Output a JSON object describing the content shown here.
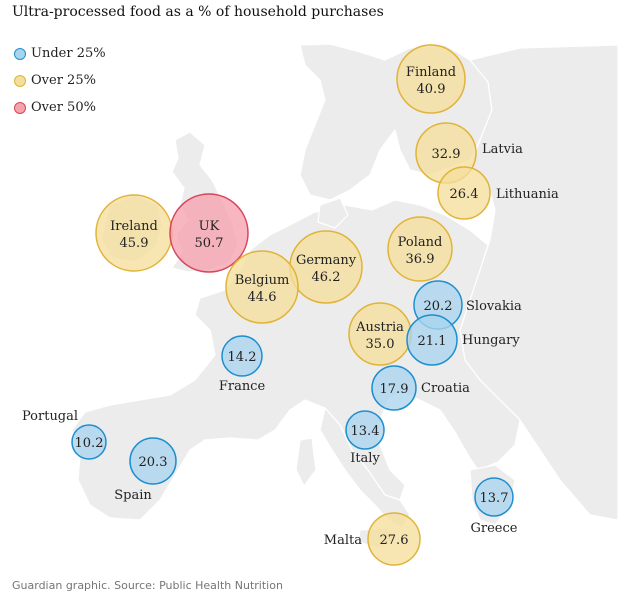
{
  "title": "Ultra-processed food as a % of household purchases",
  "legend": [
    {
      "label": "Under 25%",
      "fill": "#a9d4ee",
      "stroke": "#1d8fcf"
    },
    {
      "label": "Over 25%",
      "fill": "#f5de9c",
      "stroke": "#e0b43a"
    },
    {
      "label": "Over 50%",
      "fill": "#f6a3ae",
      "stroke": "#d6455c"
    }
  ],
  "footer": "Guardian graphic. Source: Public Health Nutrition",
  "colors": {
    "land": "#ececec",
    "sea": "#ffffff",
    "border": "#ffffff",
    "under_25": "#1d8fcf",
    "over_25": "#e0b43a",
    "over_50": "#d6455c"
  },
  "countries": [
    {
      "name": "Finland",
      "value": "40.9",
      "category": "over_25"
    },
    {
      "name": "Latvia",
      "value": "32.9",
      "category": "over_25"
    },
    {
      "name": "Lithuania",
      "value": "26.4",
      "category": "over_25"
    },
    {
      "name": "Ireland",
      "value": "45.9",
      "category": "over_25"
    },
    {
      "name": "UK",
      "value": "50.7",
      "category": "over_50"
    },
    {
      "name": "Germany",
      "value": "46.2",
      "category": "over_25"
    },
    {
      "name": "Poland",
      "value": "36.9",
      "category": "over_25"
    },
    {
      "name": "Belgium",
      "value": "44.6",
      "category": "over_25"
    },
    {
      "name": "Slovakia",
      "value": "20.2",
      "category": "under_25"
    },
    {
      "name": "Austria",
      "value": "35.0",
      "category": "over_25"
    },
    {
      "name": "Hungary",
      "value": "21.1",
      "category": "under_25"
    },
    {
      "name": "France",
      "value": "14.2",
      "category": "under_25"
    },
    {
      "name": "Croatia",
      "value": "17.9",
      "category": "under_25"
    },
    {
      "name": "Portugal",
      "value": "10.2",
      "category": "under_25"
    },
    {
      "name": "Italy",
      "value": "13.4",
      "category": "under_25"
    },
    {
      "name": "Spain",
      "value": "20.3",
      "category": "under_25"
    },
    {
      "name": "Greece",
      "value": "13.7",
      "category": "under_25"
    },
    {
      "name": "Malta",
      "value": "27.6",
      "category": "over_25"
    }
  ]
}
